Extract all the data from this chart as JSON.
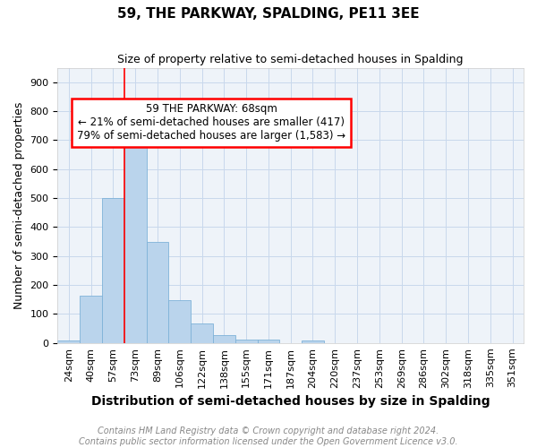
{
  "title": "59, THE PARKWAY, SPALDING, PE11 3EE",
  "subtitle": "Size of property relative to semi-detached houses in Spalding",
  "xlabel": "Distribution of semi-detached houses by size in Spalding",
  "ylabel": "Number of semi-detached properties",
  "categories": [
    "24sqm",
    "40sqm",
    "57sqm",
    "73sqm",
    "89sqm",
    "106sqm",
    "122sqm",
    "138sqm",
    "155sqm",
    "171sqm",
    "187sqm",
    "204sqm",
    "220sqm",
    "237sqm",
    "253sqm",
    "269sqm",
    "286sqm",
    "302sqm",
    "318sqm",
    "335sqm",
    "351sqm"
  ],
  "values": [
    10,
    163,
    500,
    714,
    350,
    147,
    68,
    28,
    13,
    13,
    0,
    8,
    0,
    0,
    0,
    0,
    0,
    0,
    0,
    0,
    0
  ],
  "bar_color": "#bad4ec",
  "bar_edgecolor": "#7fb2d8",
  "grid_color": "#c8d8ec",
  "background_color": "#eef3f9",
  "annotation_text_line1": "59 THE PARKWAY: 68sqm",
  "annotation_text_line2": "← 21% of semi-detached houses are smaller (417)",
  "annotation_text_line3": "79% of semi-detached houses are larger (1,583) →",
  "ylim": [
    0,
    950
  ],
  "yticks": [
    0,
    100,
    200,
    300,
    400,
    500,
    600,
    700,
    800,
    900
  ],
  "footer_line1": "Contains HM Land Registry data © Crown copyright and database right 2024.",
  "footer_line2": "Contains public sector information licensed under the Open Government Licence v3.0.",
  "title_fontsize": 11,
  "subtitle_fontsize": 9,
  "xlabel_fontsize": 10,
  "ylabel_fontsize": 9,
  "tick_fontsize": 8,
  "footer_fontsize": 7,
  "annotation_fontsize": 8.5,
  "red_line_x": 2.5
}
